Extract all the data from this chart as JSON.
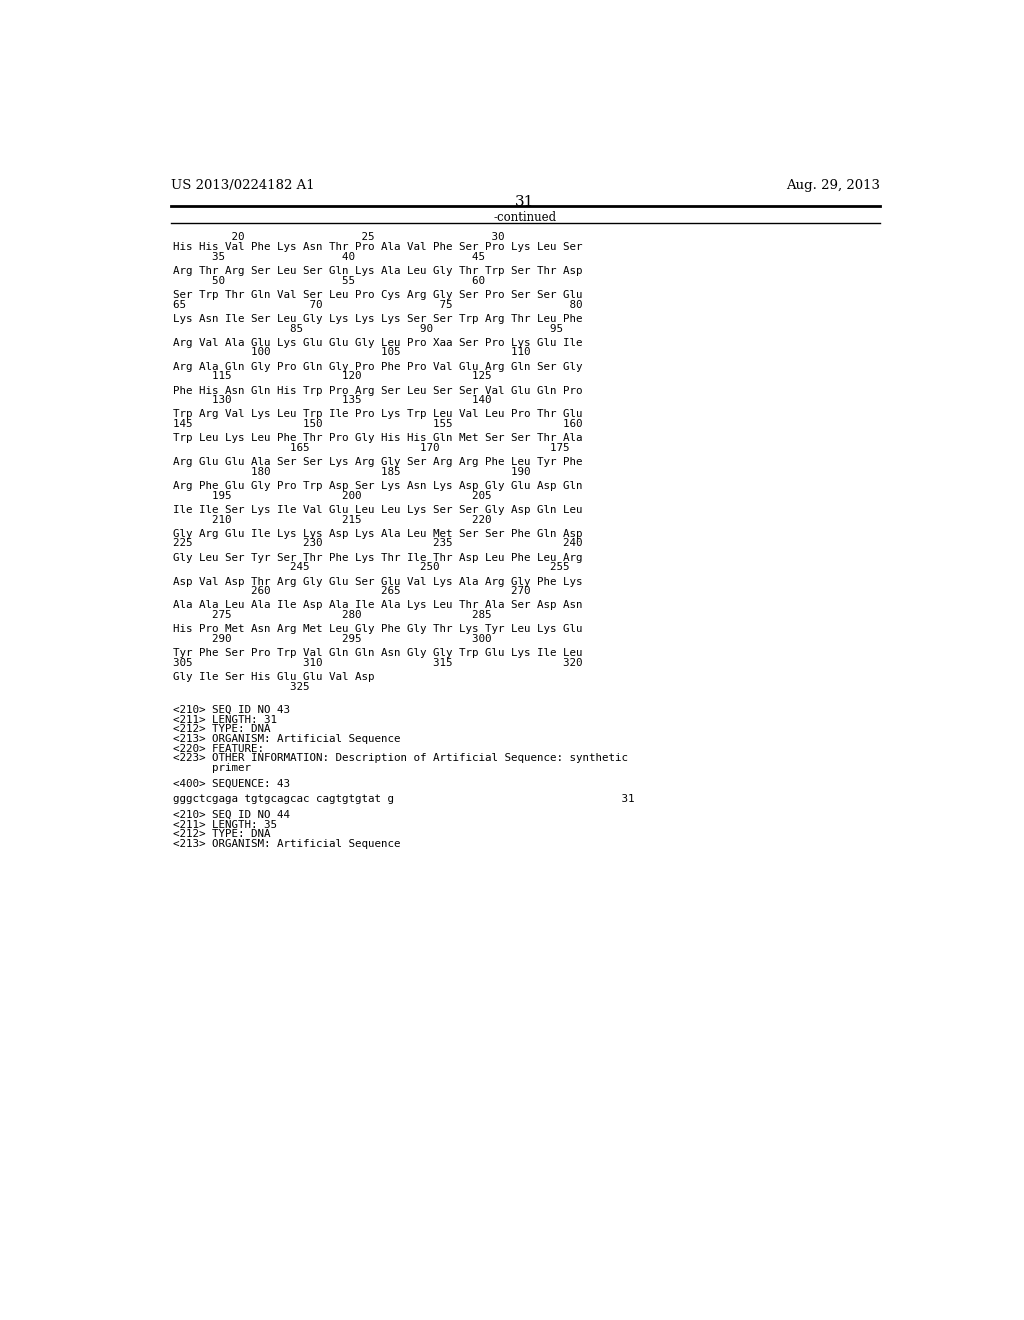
{
  "header_left": "US 2013/0224182 A1",
  "header_right": "Aug. 29, 2013",
  "page_number": "31",
  "continued_label": "-continued",
  "background_color": "#ffffff",
  "text_color": "#000000",
  "header_font_size": 9.5,
  "page_num_font_size": 11,
  "mono_font_size": 7.8,
  "sequence_lines": [
    {
      "type": "ruler",
      "text": "         20                  25                  30"
    },
    {
      "type": "seq",
      "text": "His His Val Phe Lys Asn Thr Pro Ala Val Phe Ser Pro Lys Leu Ser"
    },
    {
      "type": "num",
      "text": "      35                  40                  45"
    },
    {
      "type": "blank",
      "text": ""
    },
    {
      "type": "seq",
      "text": "Arg Thr Arg Ser Leu Ser Gln Lys Ala Leu Gly Thr Trp Ser Thr Asp"
    },
    {
      "type": "num",
      "text": "      50                  55                  60"
    },
    {
      "type": "blank",
      "text": ""
    },
    {
      "type": "seq",
      "text": "Ser Trp Thr Gln Val Ser Leu Pro Cys Arg Gly Ser Pro Ser Ser Glu"
    },
    {
      "type": "num",
      "text": "65                   70                  75                  80"
    },
    {
      "type": "blank",
      "text": ""
    },
    {
      "type": "seq",
      "text": "Lys Asn Ile Ser Leu Gly Lys Lys Lys Ser Ser Trp Arg Thr Leu Phe"
    },
    {
      "type": "num",
      "text": "                  85                  90                  95"
    },
    {
      "type": "blank",
      "text": ""
    },
    {
      "type": "seq",
      "text": "Arg Val Ala Glu Lys Glu Glu Gly Leu Pro Xaa Ser Pro Lys Glu Ile"
    },
    {
      "type": "num",
      "text": "            100                 105                 110"
    },
    {
      "type": "blank",
      "text": ""
    },
    {
      "type": "seq",
      "text": "Arg Ala Gln Gly Pro Gln Gly Pro Phe Pro Val Glu Arg Gln Ser Gly"
    },
    {
      "type": "num",
      "text": "      115                 120                 125"
    },
    {
      "type": "blank",
      "text": ""
    },
    {
      "type": "seq",
      "text": "Phe His Asn Gln His Trp Pro Arg Ser Leu Ser Ser Val Glu Gln Pro"
    },
    {
      "type": "num",
      "text": "      130                 135                 140"
    },
    {
      "type": "blank",
      "text": ""
    },
    {
      "type": "seq",
      "text": "Trp Arg Val Lys Leu Trp Ile Pro Lys Trp Leu Val Leu Pro Thr Glu"
    },
    {
      "type": "num",
      "text": "145                 150                 155                 160"
    },
    {
      "type": "blank",
      "text": ""
    },
    {
      "type": "seq",
      "text": "Trp Leu Lys Leu Phe Thr Pro Gly His His Gln Met Ser Ser Thr Ala"
    },
    {
      "type": "num",
      "text": "                  165                 170                 175"
    },
    {
      "type": "blank",
      "text": ""
    },
    {
      "type": "seq",
      "text": "Arg Glu Glu Ala Ser Ser Lys Arg Gly Ser Arg Arg Phe Leu Tyr Phe"
    },
    {
      "type": "num",
      "text": "            180                 185                 190"
    },
    {
      "type": "blank",
      "text": ""
    },
    {
      "type": "seq",
      "text": "Arg Phe Glu Gly Pro Trp Asp Ser Lys Asn Lys Asp Gly Glu Asp Gln"
    },
    {
      "type": "num",
      "text": "      195                 200                 205"
    },
    {
      "type": "blank",
      "text": ""
    },
    {
      "type": "seq",
      "text": "Ile Ile Ser Lys Ile Val Glu Leu Leu Lys Ser Ser Gly Asp Gln Leu"
    },
    {
      "type": "num",
      "text": "      210                 215                 220"
    },
    {
      "type": "blank",
      "text": ""
    },
    {
      "type": "seq",
      "text": "Gly Arg Glu Ile Lys Lys Asp Lys Ala Leu Met Ser Ser Phe Gln Asp"
    },
    {
      "type": "num",
      "text": "225                 230                 235                 240"
    },
    {
      "type": "blank",
      "text": ""
    },
    {
      "type": "seq",
      "text": "Gly Leu Ser Tyr Ser Thr Phe Lys Thr Ile Thr Asp Leu Phe Leu Arg"
    },
    {
      "type": "num",
      "text": "                  245                 250                 255"
    },
    {
      "type": "blank",
      "text": ""
    },
    {
      "type": "seq",
      "text": "Asp Val Asp Thr Arg Gly Glu Ser Glu Val Lys Ala Arg Gly Phe Lys"
    },
    {
      "type": "num",
      "text": "            260                 265                 270"
    },
    {
      "type": "blank",
      "text": ""
    },
    {
      "type": "seq",
      "text": "Ala Ala Leu Ala Ile Asp Ala Ile Ala Lys Leu Thr Ala Ser Asp Asn"
    },
    {
      "type": "num",
      "text": "      275                 280                 285"
    },
    {
      "type": "blank",
      "text": ""
    },
    {
      "type": "seq",
      "text": "His Pro Met Asn Arg Met Leu Gly Phe Gly Thr Lys Tyr Leu Lys Glu"
    },
    {
      "type": "num",
      "text": "      290                 295                 300"
    },
    {
      "type": "blank",
      "text": ""
    },
    {
      "type": "seq",
      "text": "Tyr Phe Ser Pro Trp Val Gln Gln Asn Gly Gly Trp Glu Lys Ile Leu"
    },
    {
      "type": "num",
      "text": "305                 310                 315                 320"
    },
    {
      "type": "blank",
      "text": ""
    },
    {
      "type": "seq",
      "text": "Gly Ile Ser His Glu Glu Val Asp"
    },
    {
      "type": "num",
      "text": "                  325"
    }
  ],
  "annotation_block": [
    "",
    "<210> SEQ ID NO 43",
    "<211> LENGTH: 31",
    "<212> TYPE: DNA",
    "<213> ORGANISM: Artificial Sequence",
    "<220> FEATURE:",
    "<223> OTHER INFORMATION: Description of Artificial Sequence: synthetic",
    "      primer",
    "",
    "<400> SEQUENCE: 43",
    "",
    "gggctcgaga tgtgcagcac cagtgtgtat g                                   31",
    "",
    "<210> SEQ ID NO 44",
    "<211> LENGTH: 35",
    "<212> TYPE: DNA",
    "<213> ORGANISM: Artificial Sequence"
  ]
}
